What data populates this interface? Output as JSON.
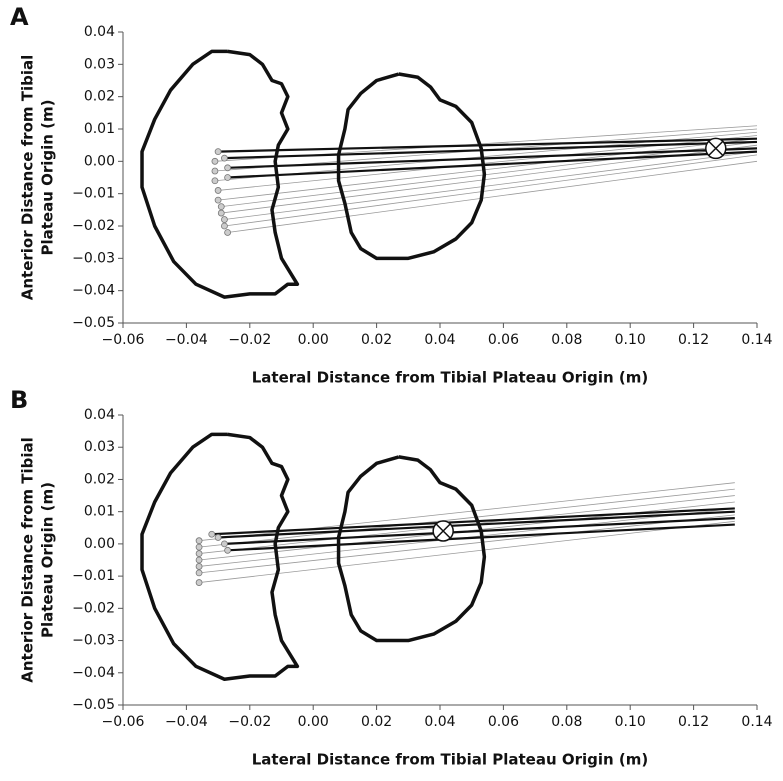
{
  "chart_data": [
    {
      "type": "line",
      "label": "A",
      "xlabel": "Lateral Distance from Tibial Plateau Origin (m)",
      "ylabel": [
        "Anterior Distance from Tibial",
        "Plateau Origin (m)"
      ],
      "xlim": [
        -0.06,
        0.14
      ],
      "ylim": [
        -0.05,
        0.04
      ],
      "xticks": [
        {
          "value": -0.06,
          "label": "−0.06"
        },
        {
          "value": -0.04,
          "label": "−0.04"
        },
        {
          "value": -0.02,
          "label": "−0.02"
        },
        {
          "value": 0,
          "label": "0.00"
        },
        0.02,
        0.04,
        0.06,
        0.08,
        {
          "value": 0.1,
          "label": "0.10"
        },
        0.12,
        0.14
      ],
      "yticks": [
        {
          "value": -0.05,
          "label": "−0.05"
        },
        {
          "value": -0.04,
          "label": "−0.04"
        },
        {
          "value": -0.03,
          "label": "−0.03"
        },
        {
          "value": -0.02,
          "label": "−0.02"
        },
        {
          "value": -0.01,
          "label": "−0.01"
        },
        {
          "value": 0,
          "label": "0.00"
        },
        0.01,
        0.02,
        0.03,
        0.04
      ],
      "series": [
        {
          "color": "#111111",
          "x": [
            -0.027,
            -0.02,
            -0.016,
            -0.013,
            -0.01,
            -0.008,
            -0.01,
            -0.008,
            -0.011,
            -0.012,
            -0.011,
            -0.013,
            -0.012,
            -0.01,
            -0.005,
            -0.008,
            -0.012,
            -0.02,
            -0.028,
            -0.037,
            -0.044,
            -0.05,
            -0.054,
            -0.054,
            -0.05,
            -0.045,
            -0.038,
            -0.032,
            -0.027
          ],
          "y": [
            0.034,
            0.033,
            0.03,
            0.025,
            0.024,
            0.02,
            0.015,
            0.01,
            0.005,
            0,
            -0.008,
            -0.015,
            -0.022,
            -0.03,
            -0.038,
            -0.038,
            -0.041,
            -0.041,
            -0.042,
            -0.038,
            -0.031,
            -0.02,
            -0.008,
            0.003,
            0.013,
            0.022,
            0.03,
            0.034,
            0.034
          ]
        },
        {
          "color": "#111111",
          "x": [
            0.027,
            0.033,
            0.037,
            0.04,
            0.045,
            0.05,
            0.053,
            0.054,
            0.053,
            0.05,
            0.045,
            0.038,
            0.03,
            0.02,
            0.015,
            0.012,
            0.01,
            0.008,
            0.008,
            0.01,
            0.011,
            0.015,
            0.02,
            0.027
          ],
          "y": [
            0.027,
            0.026,
            0.023,
            0.019,
            0.017,
            0.012,
            0.004,
            -0.004,
            -0.012,
            -0.019,
            -0.024,
            -0.028,
            -0.03,
            -0.03,
            -0.027,
            -0.022,
            -0.013,
            -0.006,
            0.002,
            0.01,
            0.016,
            0.021,
            0.025,
            0.027
          ]
        }
      ],
      "fibers": [
        {
          "color": "#9a9a9a",
          "x_start": [
            -0.031,
            -0.031,
            -0.031,
            -0.03,
            -0.03,
            -0.029,
            -0.029,
            -0.028,
            -0.028,
            -0.027
          ],
          "y_start": [
            0,
            -0.003,
            -0.006,
            -0.009,
            -0.012,
            -0.014,
            -0.016,
            -0.018,
            -0.02,
            -0.022
          ],
          "x_end": [
            0.14,
            0.14,
            0.14,
            0.14,
            0.14,
            0.14,
            0.14,
            0.14,
            0.14,
            0.14
          ],
          "y_end": [
            0.011,
            0.01,
            0.009,
            0.008,
            0.007,
            0.006,
            0.005,
            0.003,
            0.002,
            0
          ]
        },
        {
          "color": "#111111",
          "x_start": [
            -0.03,
            -0.028,
            -0.027,
            -0.027
          ],
          "y_start": [
            0.003,
            0.001,
            -0.002,
            -0.005
          ],
          "x_end": [
            0.14,
            0.14,
            0.14,
            0.14
          ],
          "y_end": [
            0.007,
            0.006,
            0.004,
            0.003
          ]
        }
      ],
      "marker": {
        "x": 0.127,
        "y": 0.004
      }
    },
    {
      "type": "line",
      "label": "B",
      "xlabel": "Lateral Distance from Tibial Plateau Origin (m)",
      "ylabel": [
        "Anterior Distance from Tibial",
        "Plateau Origin (m)"
      ],
      "xlim": [
        -0.06,
        0.14
      ],
      "ylim": [
        -0.05,
        0.04
      ],
      "xticks": [
        {
          "value": -0.06,
          "label": "−0.06"
        },
        {
          "value": -0.04,
          "label": "−0.04"
        },
        {
          "value": -0.02,
          "label": "−0.02"
        },
        {
          "value": 0,
          "label": "0.00"
        },
        0.02,
        0.04,
        0.06,
        0.08,
        {
          "value": 0.1,
          "label": "0.10"
        },
        0.12,
        0.14
      ],
      "yticks": [
        {
          "value": -0.05,
          "label": "−0.05"
        },
        {
          "value": -0.04,
          "label": "−0.04"
        },
        {
          "value": -0.03,
          "label": "−0.03"
        },
        {
          "value": -0.02,
          "label": "−0.02"
        },
        {
          "value": -0.01,
          "label": "−0.01"
        },
        {
          "value": 0,
          "label": "0.00"
        },
        0.01,
        0.02,
        0.03,
        0.04
      ],
      "series": [
        {
          "color": "#111111",
          "x": [
            -0.027,
            -0.02,
            -0.016,
            -0.013,
            -0.01,
            -0.008,
            -0.01,
            -0.008,
            -0.011,
            -0.012,
            -0.011,
            -0.013,
            -0.012,
            -0.01,
            -0.005,
            -0.008,
            -0.012,
            -0.02,
            -0.028,
            -0.037,
            -0.044,
            -0.05,
            -0.054,
            -0.054,
            -0.05,
            -0.045,
            -0.038,
            -0.032,
            -0.027
          ],
          "y": [
            0.034,
            0.033,
            0.03,
            0.025,
            0.024,
            0.02,
            0.015,
            0.01,
            0.005,
            0,
            -0.008,
            -0.015,
            -0.022,
            -0.03,
            -0.038,
            -0.038,
            -0.041,
            -0.041,
            -0.042,
            -0.038,
            -0.031,
            -0.02,
            -0.008,
            0.003,
            0.013,
            0.022,
            0.03,
            0.034,
            0.034
          ]
        },
        {
          "color": "#111111",
          "x": [
            0.027,
            0.033,
            0.037,
            0.04,
            0.045,
            0.05,
            0.053,
            0.054,
            0.053,
            0.05,
            0.045,
            0.038,
            0.03,
            0.02,
            0.015,
            0.012,
            0.01,
            0.008,
            0.008,
            0.01,
            0.011,
            0.015,
            0.02,
            0.027
          ],
          "y": [
            0.027,
            0.026,
            0.023,
            0.019,
            0.017,
            0.012,
            0.004,
            -0.004,
            -0.012,
            -0.019,
            -0.024,
            -0.028,
            -0.03,
            -0.03,
            -0.027,
            -0.022,
            -0.013,
            -0.006,
            0.002,
            0.01,
            0.016,
            0.021,
            0.025,
            0.027
          ]
        }
      ],
      "fibers": [
        {
          "color": "#9a9a9a",
          "x_start": [
            -0.036,
            -0.036,
            -0.036,
            -0.036,
            -0.036,
            -0.036,
            -0.036
          ],
          "y_start": [
            0.001,
            -0.001,
            -0.003,
            -0.005,
            -0.007,
            -0.009,
            -0.012
          ],
          "x_end": [
            0.133,
            0.133,
            0.133,
            0.133,
            0.133,
            0.133,
            0.133
          ],
          "y_end": [
            0.019,
            0.017,
            0.015,
            0.013,
            0.011,
            0.009,
            0.007
          ]
        },
        {
          "color": "#111111",
          "x_start": [
            -0.032,
            -0.03,
            -0.028,
            -0.027
          ],
          "y_start": [
            0.003,
            0.002,
            0,
            -0.002
          ],
          "x_end": [
            0.133,
            0.133,
            0.133,
            0.133
          ],
          "y_end": [
            0.011,
            0.01,
            0.008,
            0.006
          ]
        }
      ],
      "marker": {
        "x": 0.041,
        "y": 0.004
      }
    }
  ]
}
